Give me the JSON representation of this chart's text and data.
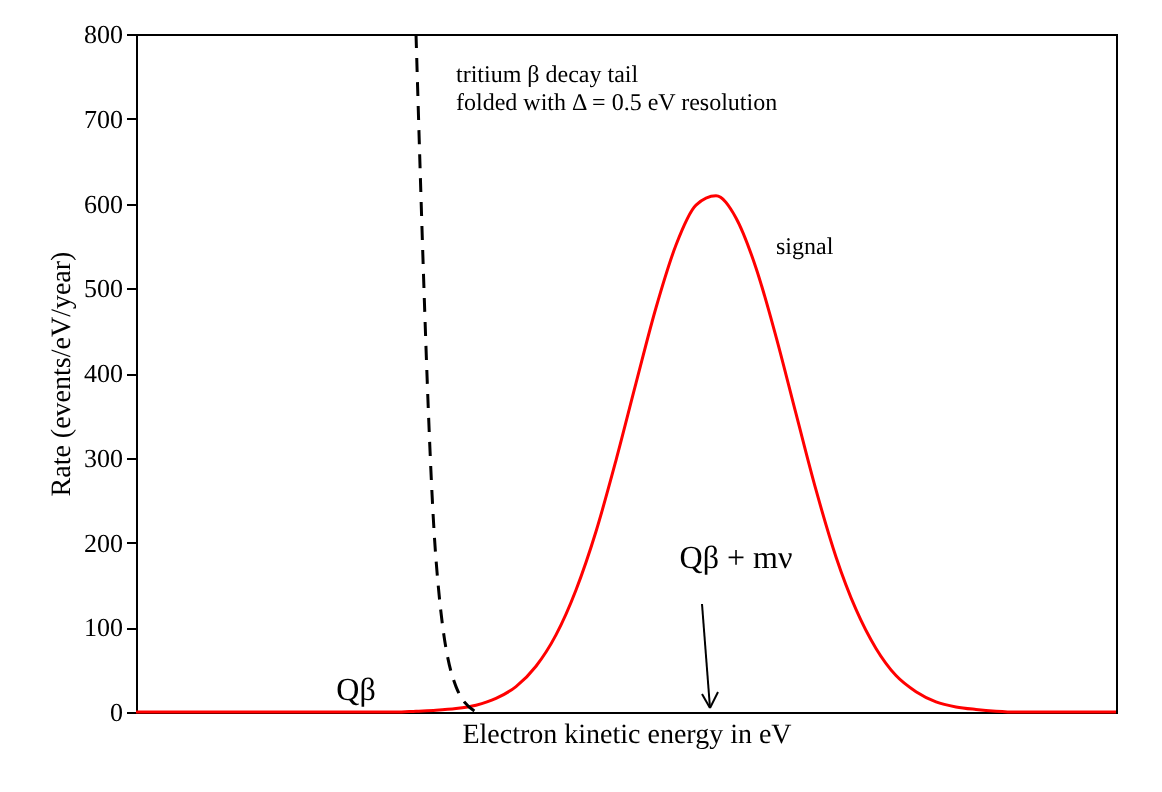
{
  "chart_data": {
    "type": "line",
    "xlabel": "Electron kinetic energy in eV",
    "ylabel": "Rate (events/eV/year)",
    "categories": [
      null,
      null,
      null,
      null,
      null,
      null,
      null,
      null,
      null,
      null,
      null,
      null,
      null,
      null,
      null,
      null,
      null,
      null,
      null,
      null,
      null,
      null,
      null,
      null,
      null,
      null,
      null,
      null,
      null,
      null,
      null,
      null,
      null,
      null,
      null,
      null,
      null,
      null,
      null,
      null,
      null,
      null,
      null,
      null,
      null,
      null,
      null,
      null,
      null,
      null
    ],
    "series": [
      {
        "name": "signal",
        "color": "#ff0000",
        "line_style": "solid",
        "values": [
          0,
          0,
          0,
          0,
          0,
          0,
          0,
          0,
          0,
          0,
          0,
          0,
          0,
          0,
          1,
          2,
          4,
          8,
          16,
          30,
          54,
          91,
          144,
          213,
          297,
          388,
          477,
          551,
          598,
          609,
          583,
          524,
          443,
          352,
          262,
          183,
          121,
          75,
          43,
          24,
          12,
          6,
          3,
          1,
          0,
          0,
          0,
          0,
          0,
          0
        ]
      },
      {
        "color": "#000000",
        "line_style": "dashed",
        "values": [
          null,
          null,
          null,
          null,
          null,
          null,
          null,
          null,
          null,
          null,
          null,
          null,
          null,
          null,
          800,
          180,
          30,
          0,
          null,
          null,
          null,
          null,
          null,
          null,
          null,
          null,
          null,
          null,
          null,
          null,
          null,
          null,
          null,
          null,
          null,
          null,
          null,
          null,
          null,
          null,
          null,
          null,
          null,
          null,
          null,
          null,
          null,
          null,
          null,
          null
        ]
      }
    ],
    "ylim": [
      0,
      800
    ],
    "yticks": [
      0,
      100,
      200,
      300,
      400,
      500,
      600,
      700,
      800
    ],
    "grid": false,
    "marker": "none",
    "tick_labels": "y",
    "annotations": [
      "tritium β decay tail\nfolded with Δ = 0.5 eV resolution",
      "Qβ",
      "Qβ + mν"
    ]
  }
}
